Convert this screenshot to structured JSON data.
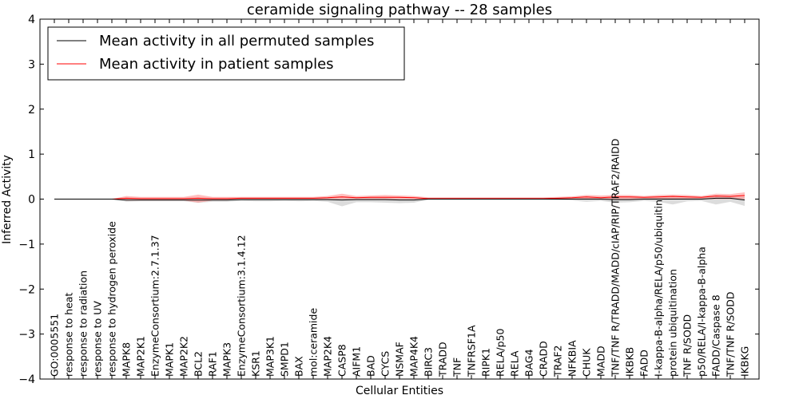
{
  "chart_data": {
    "type": "line",
    "title": "ceramide signaling pathway -- 28 samples",
    "xlabel": "Cellular Entities",
    "ylabel": "Inferred Activity",
    "ylim": [
      -4,
      4
    ],
    "yticks": [
      -4,
      -3,
      -2,
      -1,
      0,
      1,
      2,
      3,
      4
    ],
    "ytick_labels": [
      "−4",
      "−3",
      "−2",
      "−1",
      "0",
      "1",
      "2",
      "3",
      "4"
    ],
    "grid": false,
    "legend_position": "top-left",
    "colors": {
      "permuted": "#000000",
      "patient": "#ff0000",
      "permuted_band": "#bfbfbf",
      "patient_band": "#ff8080"
    },
    "categories": [
      "GO:0005551",
      "response to heat",
      "response to radiation",
      "response to UV",
      "response to hydrogen peroxide",
      "MAPK8",
      "MAP2K1",
      "EnzymeConsortium:2.7.1.37",
      "MAPK1",
      "MAP2K2",
      "BCL2",
      "RAF1",
      "MAPK3",
      "EnzymeConsortium:3.1.4.12",
      "KSR1",
      "MAP3K1",
      "SMPD1",
      "BAX",
      "mol:ceramide",
      "MAP2K4",
      "CASP8",
      "AIFM1",
      "BAD",
      "CYCS",
      "NSMAF",
      "MAP4K4",
      "BIRC3",
      "TRADD",
      "TNF",
      "TNFRSF1A",
      "RIPK1",
      "RELA/p50",
      "RELA",
      "BAG4",
      "CRADD",
      "TRAF2",
      "NFKBIA",
      "CHUK",
      "MADD",
      "TNF/TNF R/TRADD/MADD/cIAP/RIP/TRAF2/RAIDD",
      "IKBKB",
      "FADD",
      "I-kappa-B-alpha/RELA/p50/ubiquitin",
      "protein ubiquitination",
      "TNF R/SODD",
      "p50/RELA/I-kappa-B-alpha",
      "FADD/Caspase 8",
      "TNF/TNF R/SODD",
      "IKBKG"
    ],
    "series": [
      {
        "name": "Mean activity in all permuted samples",
        "key": "permuted",
        "values": [
          0,
          0,
          0,
          0,
          0,
          -0.02,
          -0.02,
          -0.02,
          -0.02,
          -0.02,
          -0.02,
          -0.02,
          -0.02,
          -0.01,
          -0.01,
          -0.01,
          -0.01,
          -0.01,
          -0.01,
          -0.01,
          -0.02,
          -0.01,
          -0.01,
          -0.01,
          -0.02,
          -0.02,
          0,
          0,
          0,
          0,
          0,
          0,
          0,
          0,
          0,
          0,
          0,
          0,
          0,
          -0.01,
          -0.01,
          0,
          0,
          0,
          0,
          0,
          0.02,
          0.02,
          -0.02
        ],
        "band_low": [
          0,
          0,
          0,
          0,
          0,
          -0.06,
          -0.05,
          -0.05,
          -0.05,
          -0.05,
          -0.08,
          -0.06,
          -0.06,
          -0.04,
          -0.05,
          -0.05,
          -0.04,
          -0.05,
          -0.04,
          -0.06,
          -0.16,
          -0.07,
          -0.07,
          -0.08,
          -0.09,
          -0.08,
          -0.01,
          -0.01,
          -0.01,
          -0.01,
          -0.01,
          -0.01,
          -0.01,
          -0.01,
          -0.01,
          -0.02,
          -0.03,
          -0.06,
          -0.04,
          -0.08,
          -0.07,
          -0.04,
          -0.06,
          -0.12,
          -0.05,
          -0.04,
          -0.12,
          -0.06,
          -0.15
        ],
        "band_high": [
          0,
          0,
          0,
          0,
          0,
          0.02,
          0.01,
          0.01,
          0.01,
          0.01,
          0.03,
          0.01,
          0.01,
          0.02,
          0.02,
          0.02,
          0.02,
          0.02,
          0.02,
          0.03,
          0.04,
          0.03,
          0.04,
          0.04,
          0.04,
          0.03,
          0.01,
          0.01,
          0.01,
          0.01,
          0.01,
          0.01,
          0.01,
          0.01,
          0.01,
          0.02,
          0.03,
          0.05,
          0.03,
          0.04,
          0.04,
          0.03,
          0.04,
          0.05,
          0.04,
          0.03,
          0.06,
          0.05,
          0.05
        ]
      },
      {
        "name": "Mean activity in patient samples",
        "key": "patient",
        "values": [
          0,
          0,
          0,
          0,
          0,
          0.02,
          0.01,
          0.01,
          0.01,
          0.01,
          0.02,
          0.01,
          0.01,
          0.02,
          0.02,
          0.02,
          0.02,
          0.02,
          0.02,
          0.03,
          0.05,
          0.03,
          0.04,
          0.04,
          0.04,
          0.03,
          0.01,
          0.01,
          0.01,
          0.01,
          0.01,
          0.01,
          0.01,
          0.01,
          0.01,
          0.02,
          0.03,
          0.05,
          0.03,
          0.05,
          0.05,
          0.04,
          0.05,
          0.06,
          0.05,
          0.04,
          0.07,
          0.06,
          0.08
        ],
        "band_low": [
          0,
          0,
          0,
          0,
          0,
          -0.03,
          -0.03,
          -0.03,
          -0.03,
          -0.03,
          -0.08,
          -0.03,
          -0.03,
          -0.01,
          -0.01,
          -0.01,
          -0.01,
          -0.01,
          -0.01,
          0,
          0,
          0,
          0,
          0,
          0,
          0,
          0,
          0,
          0,
          0,
          0,
          0,
          0,
          0,
          0,
          0,
          0,
          0,
          0,
          0,
          0,
          0,
          0,
          0,
          0,
          0,
          0,
          0,
          0
        ],
        "band_high": [
          0,
          0,
          0,
          0,
          0,
          0.07,
          0.05,
          0.05,
          0.05,
          0.05,
          0.1,
          0.05,
          0.05,
          0.05,
          0.05,
          0.05,
          0.05,
          0.05,
          0.05,
          0.07,
          0.12,
          0.07,
          0.08,
          0.09,
          0.08,
          0.07,
          0.04,
          0.04,
          0.04,
          0.04,
          0.04,
          0.04,
          0.04,
          0.04,
          0.04,
          0.05,
          0.06,
          0.09,
          0.08,
          0.09,
          0.09,
          0.07,
          0.09,
          0.1,
          0.09,
          0.07,
          0.12,
          0.11,
          0.15
        ]
      }
    ]
  }
}
